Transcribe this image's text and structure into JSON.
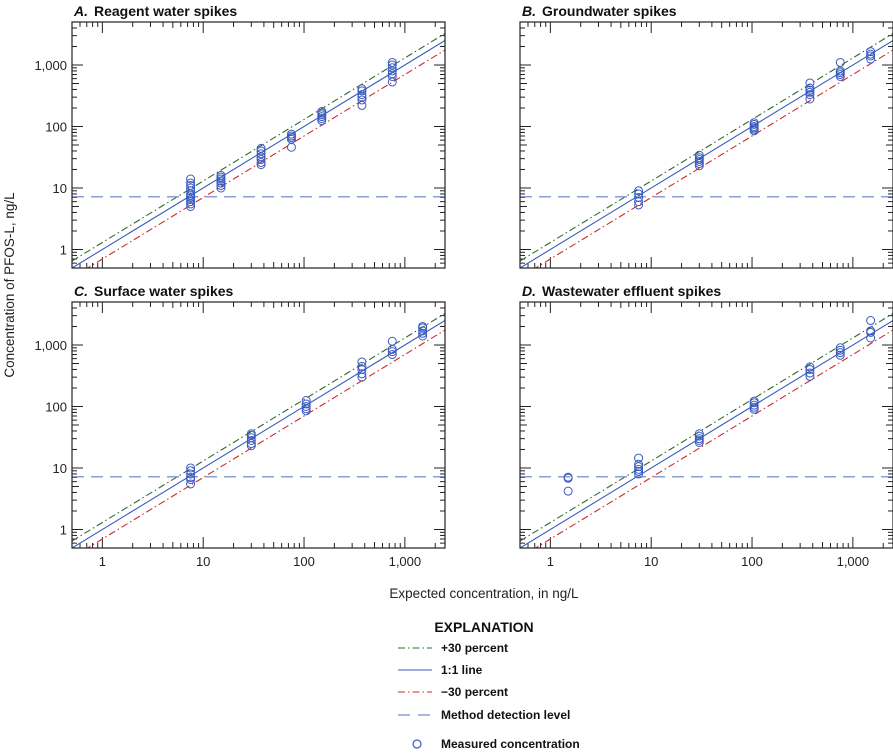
{
  "chart_data": [
    {
      "type": "scatter",
      "title": "Reagent water spikes",
      "label": "A.",
      "xscale": "log",
      "yscale": "log",
      "xlim": [
        0.5,
        2500
      ],
      "ylim": [
        0.5,
        5000
      ],
      "series": [
        {
          "x": 7.5,
          "values": [
            5,
            5.5,
            6,
            6.5,
            7,
            7.5,
            8,
            9,
            10,
            11,
            12,
            14
          ]
        },
        {
          "x": 15,
          "values": [
            10,
            11,
            12,
            13,
            14,
            15,
            16
          ]
        },
        {
          "x": 37.5,
          "values": [
            24,
            26,
            29,
            32,
            36,
            40,
            44
          ]
        },
        {
          "x": 75,
          "values": [
            46,
            62,
            66,
            70,
            75
          ]
        },
        {
          "x": 150,
          "values": [
            125,
            135,
            145,
            155,
            165,
            175
          ]
        },
        {
          "x": 375,
          "values": [
            220,
            270,
            300,
            330,
            380,
            410
          ]
        },
        {
          "x": 750,
          "values": [
            530,
            650,
            720,
            800,
            900,
            1000,
            1100
          ]
        }
      ]
    },
    {
      "type": "scatter",
      "title": "Groundwater spikes",
      "label": "B.",
      "xscale": "log",
      "yscale": "log",
      "xlim": [
        0.5,
        2500
      ],
      "ylim": [
        0.5,
        5000
      ],
      "series": [
        {
          "x": 7.5,
          "values": [
            5.3,
            6,
            7,
            8,
            9
          ]
        },
        {
          "x": 30,
          "values": [
            23,
            25,
            27,
            29,
            31,
            34
          ]
        },
        {
          "x": 105,
          "values": [
            85,
            90,
            95,
            100,
            108,
            115
          ]
        },
        {
          "x": 375,
          "values": [
            280,
            330,
            360,
            390,
            420,
            510
          ]
        },
        {
          "x": 750,
          "values": [
            650,
            700,
            750,
            800,
            1100
          ]
        },
        {
          "x": 1500,
          "values": [
            1250,
            1400,
            1500,
            1650
          ]
        }
      ]
    },
    {
      "type": "scatter",
      "title": "Surface water spikes",
      "label": "C.",
      "xscale": "log",
      "yscale": "log",
      "xlim": [
        0.5,
        2500
      ],
      "ylim": [
        0.5,
        5000
      ],
      "series": [
        {
          "x": 7.5,
          "values": [
            5.5,
            6.5,
            7,
            8,
            9,
            10
          ]
        },
        {
          "x": 30,
          "values": [
            23,
            25,
            28,
            31,
            34,
            36
          ]
        },
        {
          "x": 105,
          "values": [
            85,
            92,
            100,
            110,
            125
          ]
        },
        {
          "x": 375,
          "values": [
            300,
            340,
            400,
            450,
            530
          ]
        },
        {
          "x": 750,
          "values": [
            700,
            780,
            850,
            1150
          ]
        },
        {
          "x": 1500,
          "values": [
            1400,
            1550,
            1700,
            1900,
            2000
          ]
        }
      ]
    },
    {
      "type": "scatter",
      "title": "Wastewater effluent spikes",
      "label": "D.",
      "xscale": "log",
      "yscale": "log",
      "xlim": [
        0.5,
        2500
      ],
      "ylim": [
        0.5,
        5000
      ],
      "series": [
        {
          "x": 1.5,
          "values": [
            4.2,
            6.8,
            7.1
          ]
        },
        {
          "x": 7.5,
          "values": [
            8,
            8.8,
            9.5,
            10.5,
            11.5,
            14.5
          ]
        },
        {
          "x": 30,
          "values": [
            26,
            28,
            30,
            33,
            36
          ]
        },
        {
          "x": 105,
          "values": [
            90,
            97,
            105,
            115,
            122
          ]
        },
        {
          "x": 375,
          "values": [
            310,
            350,
            400,
            440
          ]
        },
        {
          "x": 750,
          "values": [
            680,
            750,
            820,
            900
          ]
        },
        {
          "x": 1500,
          "values": [
            1300,
            1600,
            1700,
            2500
          ]
        }
      ]
    }
  ],
  "reference_lines": {
    "plus30_factor": 1.3,
    "one_to_one_factor": 1.0,
    "minus30_factor": 0.7,
    "method_detection_level": 7.2
  },
  "axes": {
    "ylabel": "Concentration of PFOS-L, ng/L",
    "xlabel": "Expected concentration, in ng/L",
    "ticks": [
      {
        "value": 1,
        "label": "1"
      },
      {
        "value": 10,
        "label": "10"
      },
      {
        "value": 100,
        "label": "100"
      },
      {
        "value": 1000,
        "label": "1,000"
      }
    ]
  },
  "legend": {
    "title": "EXPLANATION",
    "items": [
      {
        "label": "+30 percent",
        "kind": "dashdot",
        "color": "#2e6b2e"
      },
      {
        "label": "1:1 line",
        "kind": "solid",
        "color": "#3a5bbf"
      },
      {
        "label": "−30 percent",
        "kind": "dashdot",
        "color": "#cc2b2b"
      },
      {
        "label": "Method detection level",
        "kind": "dash",
        "color": "#8a9fd6"
      },
      {
        "label": "Measured concentration",
        "kind": "circle",
        "color": "#3a5bbf"
      }
    ]
  },
  "colors": {
    "plus30": "#2e6b2e",
    "one_to_one": "#3a5bbf",
    "minus30": "#cc2b2b",
    "mdl": "#8a9fd6",
    "points": "#3a5bbf"
  }
}
